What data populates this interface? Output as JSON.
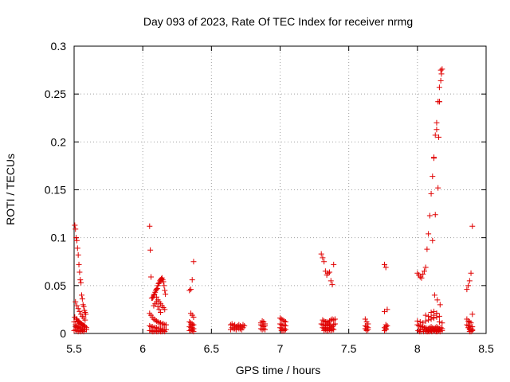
{
  "chart_data": {
    "type": "scatter",
    "title": "Day 093 of 2023, Rate Of TEC Index for receiver nrmg",
    "xlabel": "GPS time / hours",
    "ylabel": "ROTI / TECUs",
    "xlim": [
      5.5,
      8.5
    ],
    "ylim": [
      0,
      0.3
    ],
    "grid": true,
    "marker": "plus",
    "marker_color": "#e00000",
    "x_ticks": [
      5.5,
      6,
      6.5,
      7,
      7.5,
      8,
      8.5
    ],
    "x_tick_labels": [
      "5.5",
      "6",
      "6.5",
      "7",
      "7.5",
      "8",
      "8.5"
    ],
    "y_ticks": [
      0,
      0.05,
      0.1,
      0.15,
      0.2,
      0.25,
      0.3
    ],
    "y_tick_labels": [
      "0",
      "0.05",
      "0.1",
      "0.15",
      "0.2",
      "0.25",
      "0.3"
    ],
    "series": [
      {
        "name": "ROTI",
        "x": [
          5.505,
          5.51,
          5.515,
          5.52,
          5.525,
          5.53,
          5.535,
          5.54,
          5.545,
          5.55,
          5.555,
          5.56,
          5.565,
          5.57,
          5.575,
          5.58,
          5.585,
          5.51,
          5.52,
          5.53,
          5.54,
          5.55,
          5.56,
          5.57,
          5.58,
          5.505,
          5.515,
          5.525,
          5.535,
          5.545,
          5.555,
          5.565,
          5.575,
          5.51,
          5.52,
          5.53,
          5.54,
          5.55,
          5.56,
          5.57,
          5.5,
          5.51,
          5.52,
          5.53,
          5.54,
          5.55,
          5.56,
          5.57,
          5.58,
          5.59,
          5.52,
          5.53,
          5.54,
          5.55,
          5.56,
          5.57,
          5.58,
          5.59,
          5.5,
          5.51,
          5.52,
          5.53,
          5.54,
          5.55,
          5.56,
          5.57,
          6.05,
          6.055,
          6.06,
          6.065,
          6.07,
          6.075,
          6.08,
          6.085,
          6.09,
          6.095,
          6.1,
          6.105,
          6.11,
          6.115,
          6.12,
          6.125,
          6.13,
          6.135,
          6.14,
          6.145,
          6.15,
          6.155,
          6.16,
          6.165,
          6.05,
          6.06,
          6.07,
          6.08,
          6.09,
          6.1,
          6.11,
          6.12,
          6.13,
          6.14,
          6.15,
          6.16,
          6.17,
          6.05,
          6.06,
          6.07,
          6.08,
          6.09,
          6.1,
          6.11,
          6.12,
          6.13,
          6.14,
          6.15,
          6.16,
          6.17,
          6.05,
          6.06,
          6.07,
          6.08,
          6.09,
          6.1,
          6.11,
          6.12,
          6.13,
          6.14,
          6.15,
          6.16,
          6.08,
          6.09,
          6.1,
          6.11,
          6.12,
          6.13,
          6.1,
          6.11,
          6.12,
          6.13,
          6.14,
          6.15,
          6.16,
          6.34,
          6.35,
          6.36,
          6.37,
          6.35,
          6.36,
          6.37,
          6.34,
          6.35,
          6.36,
          6.37,
          6.34,
          6.35,
          6.36,
          6.37,
          6.35,
          6.36,
          6.34,
          6.35,
          6.36,
          6.37,
          6.35,
          6.36,
          6.64,
          6.65,
          6.66,
          6.67,
          6.68,
          6.69,
          6.7,
          6.71,
          6.72,
          6.73,
          6.74,
          6.65,
          6.67,
          6.69,
          6.71,
          6.73,
          6.64,
          6.66,
          6.68,
          6.7,
          6.72,
          6.86,
          6.87,
          6.88,
          6.89,
          6.86,
          6.87,
          6.88,
          6.89,
          6.86,
          6.87,
          6.88,
          6.89,
          7.0,
          7.01,
          7.02,
          7.03,
          7.04,
          7.0,
          7.01,
          7.02,
          7.03,
          7.04,
          7.0,
          7.01,
          7.02,
          7.03,
          7.04,
          7.01,
          7.02,
          7.03,
          7.3,
          7.31,
          7.32,
          7.33,
          7.34,
          7.35,
          7.36,
          7.37,
          7.38,
          7.39,
          7.4,
          7.31,
          7.32,
          7.33,
          7.34,
          7.35,
          7.36,
          7.37,
          7.38,
          7.39,
          7.3,
          7.31,
          7.32,
          7.33,
          7.34,
          7.35,
          7.36,
          7.37,
          7.38,
          7.39,
          7.4,
          7.31,
          7.32,
          7.33,
          7.34,
          7.35,
          7.36,
          7.37,
          7.38,
          7.39,
          7.32,
          7.33,
          7.34,
          7.35,
          7.36,
          7.37,
          7.38,
          7.62,
          7.63,
          7.64,
          7.62,
          7.63,
          7.64,
          7.62,
          7.63,
          7.64,
          7.63,
          7.76,
          7.77,
          7.78,
          7.76,
          7.77,
          7.78,
          7.77,
          7.76,
          7.77,
          7.77,
          7.76,
          8.0,
          8.01,
          8.02,
          8.03,
          8.04,
          8.05,
          8.06,
          8.07,
          8.08,
          8.09,
          8.1,
          8.11,
          8.12,
          8.13,
          8.14,
          8.15,
          8.16,
          8.17,
          8.18,
          8.0,
          8.02,
          8.04,
          8.06,
          8.08,
          8.1,
          8.12,
          8.14,
          8.16,
          8.18,
          8.0,
          8.01,
          8.02,
          8.03,
          8.04,
          8.05,
          8.06,
          8.07,
          8.08,
          8.09,
          8.1,
          8.11,
          8.12,
          8.13,
          8.14,
          8.15,
          8.16,
          8.17,
          8.18,
          8.02,
          8.04,
          8.06,
          8.08,
          8.1,
          8.12,
          8.14,
          8.16,
          8.18,
          8.06,
          8.08,
          8.1,
          8.12,
          8.14,
          8.16,
          8.1,
          8.12,
          8.14,
          8.005,
          8.015,
          8.025,
          8.045,
          8.065,
          8.075,
          8.085,
          8.095,
          8.105,
          8.115,
          8.125,
          8.135,
          8.145,
          8.155,
          8.165,
          8.11,
          8.13,
          8.15,
          8.12,
          8.14,
          8.16,
          8.125,
          8.145,
          8.165,
          8.17,
          8.175,
          8.16,
          8.155,
          8.36,
          8.37,
          8.38,
          8.39,
          8.4,
          8.36,
          8.37,
          8.38,
          8.39,
          8.4,
          8.36,
          8.37,
          8.38,
          8.39,
          8.4,
          8.37,
          8.38,
          8.39,
          8.4,
          8.38,
          8.39,
          8.4,
          8.38,
          8.39
        ],
        "y": [
          0.113,
          0.109,
          0.1,
          0.097,
          0.089,
          0.082,
          0.072,
          0.064,
          0.056,
          0.053,
          0.04,
          0.036,
          0.03,
          0.028,
          0.024,
          0.022,
          0.02,
          0.033,
          0.029,
          0.026,
          0.023,
          0.02,
          0.018,
          0.016,
          0.014,
          0.017,
          0.015,
          0.013,
          0.012,
          0.011,
          0.01,
          0.009,
          0.008,
          0.007,
          0.006,
          0.006,
          0.005,
          0.005,
          0.004,
          0.004,
          0.012,
          0.009,
          0.008,
          0.007,
          0.006,
          0.005,
          0.005,
          0.004,
          0.004,
          0.004,
          0.015,
          0.013,
          0.011,
          0.01,
          0.009,
          0.008,
          0.007,
          0.006,
          0.003,
          0.004,
          0.003,
          0.002,
          0.003,
          0.002,
          0.003,
          0.002,
          0.112,
          0.087,
          0.059,
          0.037,
          0.037,
          0.038,
          0.04,
          0.041,
          0.043,
          0.045,
          0.046,
          0.047,
          0.05,
          0.052,
          0.053,
          0.055,
          0.056,
          0.057,
          0.058,
          0.056,
          0.054,
          0.05,
          0.045,
          0.041,
          0.021,
          0.019,
          0.017,
          0.015,
          0.014,
          0.013,
          0.012,
          0.011,
          0.011,
          0.01,
          0.01,
          0.009,
          0.009,
          0.008,
          0.007,
          0.007,
          0.006,
          0.006,
          0.006,
          0.005,
          0.005,
          0.005,
          0.004,
          0.004,
          0.004,
          0.004,
          0.003,
          0.003,
          0.002,
          0.002,
          0.003,
          0.002,
          0.002,
          0.003,
          0.002,
          0.002,
          0.003,
          0.002,
          0.029,
          0.031,
          0.033,
          0.028,
          0.025,
          0.022,
          0.038,
          0.035,
          0.033,
          0.031,
          0.029,
          0.027,
          0.025,
          0.045,
          0.046,
          0.056,
          0.075,
          0.021,
          0.019,
          0.017,
          0.012,
          0.011,
          0.01,
          0.009,
          0.007,
          0.006,
          0.006,
          0.005,
          0.004,
          0.004,
          0.003,
          0.003,
          0.003,
          0.002,
          0.009,
          0.008,
          0.009,
          0.01,
          0.008,
          0.009,
          0.007,
          0.008,
          0.009,
          0.008,
          0.007,
          0.009,
          0.008,
          0.006,
          0.005,
          0.006,
          0.005,
          0.006,
          0.004,
          0.005,
          0.004,
          0.005,
          0.004,
          0.011,
          0.013,
          0.012,
          0.01,
          0.009,
          0.008,
          0.007,
          0.008,
          0.005,
          0.004,
          0.005,
          0.004,
          0.016,
          0.015,
          0.014,
          0.013,
          0.012,
          0.01,
          0.009,
          0.008,
          0.009,
          0.008,
          0.006,
          0.005,
          0.004,
          0.005,
          0.004,
          0.003,
          0.003,
          0.003,
          0.083,
          0.079,
          0.075,
          0.065,
          0.061,
          0.063,
          0.064,
          0.055,
          0.051,
          0.072,
          0.015,
          0.014,
          0.013,
          0.012,
          0.012,
          0.011,
          0.013,
          0.014,
          0.015,
          0.014,
          0.01,
          0.009,
          0.009,
          0.008,
          0.008,
          0.01,
          0.009,
          0.008,
          0.007,
          0.009,
          0.01,
          0.006,
          0.005,
          0.006,
          0.005,
          0.006,
          0.005,
          0.006,
          0.005,
          0.004,
          0.003,
          0.004,
          0.003,
          0.003,
          0.004,
          0.003,
          0.004,
          0.015,
          0.012,
          0.01,
          0.008,
          0.007,
          0.006,
          0.005,
          0.004,
          0.004,
          0.003,
          0.072,
          0.069,
          0.025,
          0.023,
          0.009,
          0.008,
          0.007,
          0.006,
          0.005,
          0.004,
          0.003,
          0.063,
          0.061,
          0.059,
          0.058,
          0.062,
          0.065,
          0.069,
          0.088,
          0.104,
          0.123,
          0.146,
          0.164,
          0.184,
          0.207,
          0.22,
          0.242,
          0.257,
          0.264,
          0.276,
          0.013,
          0.012,
          0.011,
          0.013,
          0.014,
          0.015,
          0.016,
          0.017,
          0.012,
          0.011,
          0.009,
          0.008,
          0.008,
          0.007,
          0.007,
          0.006,
          0.006,
          0.005,
          0.005,
          0.006,
          0.007,
          0.006,
          0.005,
          0.006,
          0.007,
          0.006,
          0.005,
          0.006,
          0.005,
          0.004,
          0.004,
          0.003,
          0.003,
          0.003,
          0.004,
          0.003,
          0.004,
          0.003,
          0.019,
          0.018,
          0.017,
          0.019,
          0.021,
          0.018,
          0.022,
          0.023,
          0.021,
          0.003,
          0.002,
          0.002,
          0.002,
          0.002,
          0.002,
          0.002,
          0.003,
          0.002,
          0.003,
          0.003,
          0.002,
          0.002,
          0.003,
          0.002,
          0.097,
          0.124,
          0.152,
          0.183,
          0.213,
          0.242,
          0.04,
          0.035,
          0.03,
          0.275,
          0.271,
          0.242,
          0.205,
          0.046,
          0.05,
          0.055,
          0.063,
          0.112,
          0.015,
          0.013,
          0.012,
          0.011,
          0.02,
          0.009,
          0.008,
          0.008,
          0.007,
          0.007,
          0.006,
          0.005,
          0.005,
          0.004,
          0.004,
          0.003,
          0.003,
          0.002,
          0.002
        ]
      }
    ]
  }
}
